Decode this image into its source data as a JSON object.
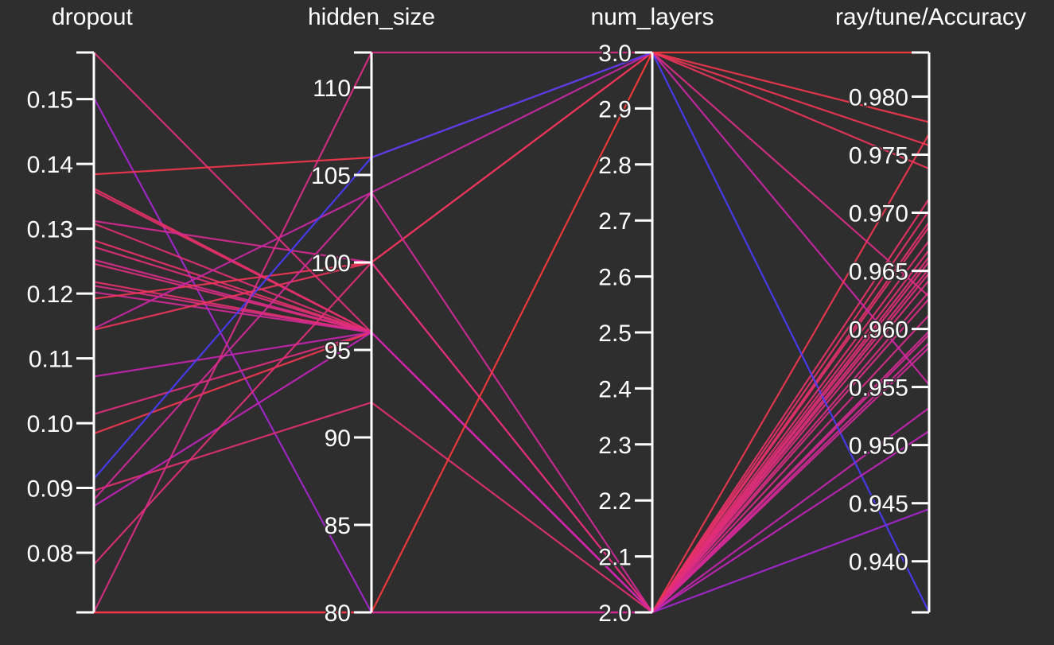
{
  "chart_data": {
    "type": "parallel_coordinates",
    "title": "",
    "axes": [
      {
        "name": "dropout",
        "range": [
          0.0708,
          0.1572
        ],
        "ticks": [
          0.08,
          0.09,
          0.1,
          0.11,
          0.12,
          0.13,
          0.14,
          0.15
        ],
        "tick_labels": [
          "0.08",
          "0.09",
          "0.10",
          "0.11",
          "0.12",
          "0.13",
          "0.14",
          "0.15"
        ]
      },
      {
        "name": "hidden_size",
        "range": [
          80,
          112
        ],
        "ticks": [
          80,
          85,
          90,
          95,
          100,
          105,
          110
        ],
        "tick_labels": [
          "80",
          "85",
          "90",
          "95",
          "100",
          "105",
          "110"
        ]
      },
      {
        "name": "num_layers",
        "range": [
          2.0,
          3.0
        ],
        "ticks": [
          2.0,
          2.1,
          2.2,
          2.3,
          2.4,
          2.5,
          2.6,
          2.7,
          2.8,
          2.9,
          3.0
        ],
        "tick_labels": [
          "2.0",
          "2.1",
          "2.2",
          "2.3",
          "2.4",
          "2.5",
          "2.6",
          "2.7",
          "2.8",
          "2.9",
          "3.0"
        ]
      },
      {
        "name": "ray/tune/Accuracy",
        "range": [
          0.9356,
          0.9838
        ],
        "ticks": [
          0.94,
          0.945,
          0.95,
          0.955,
          0.96,
          0.965,
          0.97,
          0.975,
          0.98
        ],
        "tick_labels": [
          "0.940",
          "0.945",
          "0.950",
          "0.955",
          "0.960",
          "0.965",
          "0.970",
          "0.975",
          "0.980"
        ]
      }
    ],
    "colors": {
      "background": "#2e2e2e",
      "axis": "#ffffff",
      "text": "#ffffff",
      "low_accuracy": "#4a3cff",
      "mid_accuracy": "#c020c8",
      "high_accuracy": "#ff3a3a"
    },
    "runs": [
      {
        "values": [
          0.1572,
          96,
          2.0,
          0.9648
        ]
      },
      {
        "values": [
          0.1502,
          80,
          2.0,
          0.9445
        ]
      },
      {
        "values": [
          0.1384,
          106,
          3.0,
          0.9778
        ]
      },
      {
        "values": [
          0.1362,
          96,
          2.0,
          0.9712
        ]
      },
      {
        "values": [
          0.1358,
          96,
          2.0,
          0.9688
        ]
      },
      {
        "values": [
          0.1312,
          100,
          2.0,
          0.9595
        ]
      },
      {
        "values": [
          0.1308,
          96,
          2.0,
          0.9668
        ]
      },
      {
        "values": [
          0.1282,
          96,
          2.0,
          0.9702
        ]
      },
      {
        "values": [
          0.1272,
          96,
          2.0,
          0.9658
        ]
      },
      {
        "values": [
          0.1252,
          96,
          2.0,
          0.9612
        ]
      },
      {
        "values": [
          0.1246,
          96,
          2.0,
          0.9642
        ]
      },
      {
        "values": [
          0.1218,
          96,
          2.0,
          0.9692
        ]
      },
      {
        "values": [
          0.1212,
          96,
          2.0,
          0.9626
        ]
      },
      {
        "values": [
          0.1202,
          96,
          2.0,
          0.9588
        ]
      },
      {
        "values": [
          0.1192,
          100,
          3.0,
          0.9758
        ]
      },
      {
        "values": [
          0.1146,
          104,
          3.0,
          0.9552
        ]
      },
      {
        "values": [
          0.1144,
          100,
          3.0,
          0.9738
        ]
      },
      {
        "values": [
          0.1072,
          96,
          2.0,
          0.9532
        ]
      },
      {
        "values": [
          0.1014,
          96,
          2.0,
          0.9652
        ]
      },
      {
        "values": [
          0.0984,
          96,
          2.0,
          0.9768
        ]
      },
      {
        "values": [
          0.0914,
          106,
          3.0,
          0.9356
        ]
      },
      {
        "values": [
          0.0896,
          92,
          2.0,
          0.9676
        ]
      },
      {
        "values": [
          0.0872,
          96,
          2.0,
          0.9512
        ]
      },
      {
        "values": [
          0.0882,
          104,
          2.0,
          0.9584
        ]
      },
      {
        "values": [
          0.0782,
          100,
          2.0,
          0.9662
        ]
      },
      {
        "values": [
          0.0708,
          80,
          2.0,
          0.9632
        ]
      },
      {
        "values": [
          0.0708,
          80,
          2.0,
          0.9598
        ]
      },
      {
        "values": [
          0.0708,
          112,
          3.0,
          0.9628
        ]
      },
      {
        "values": [
          0.0708,
          80,
          3.0,
          0.9838
        ]
      }
    ]
  }
}
